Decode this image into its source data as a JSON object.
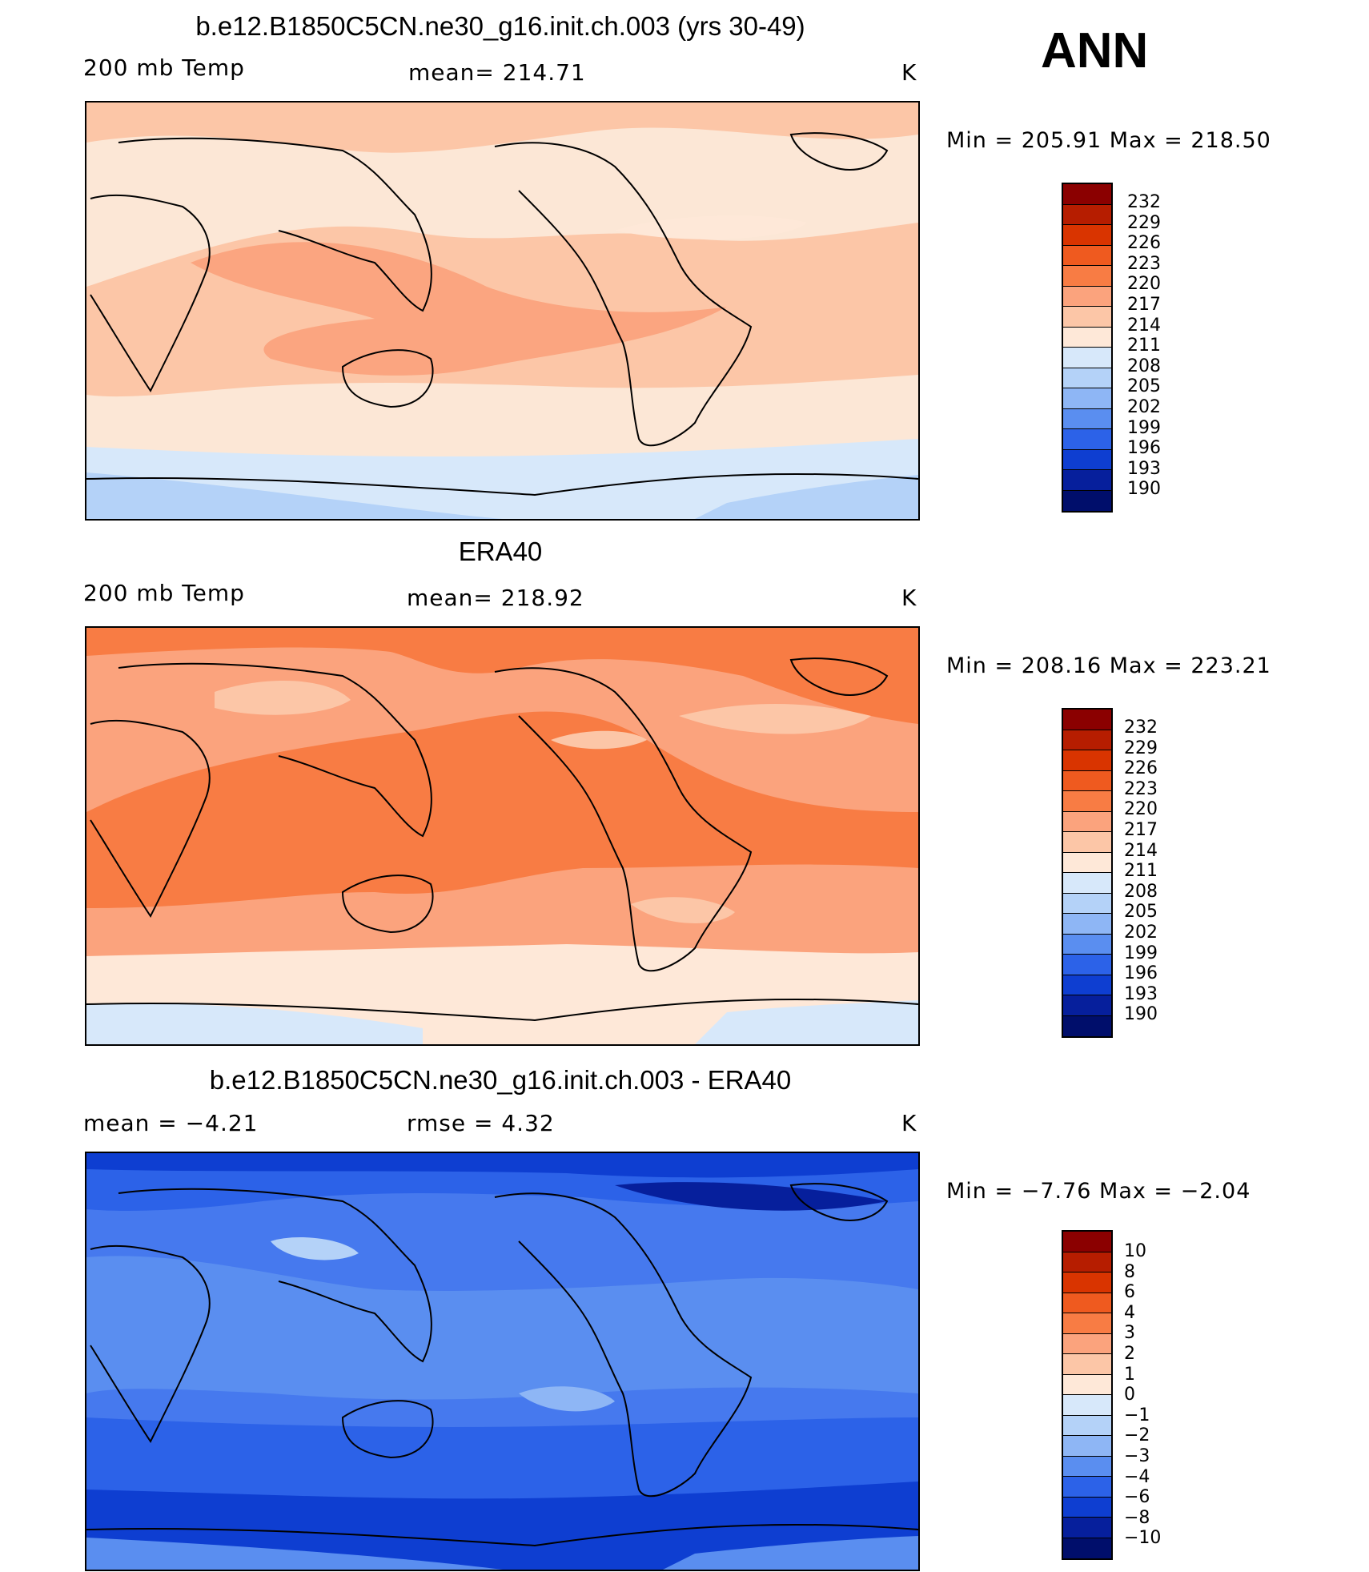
{
  "season": "ANN",
  "panels": [
    {
      "title": "b.e12.B1850C5CN.ne30_g16.init.ch.003 (yrs 30-49)",
      "left_label": "200 mb Temp",
      "center_label": "mean= 214.71",
      "units": "K",
      "minmax": "Min = 205.91 Max = 218.50",
      "base_color": "#fce7d6",
      "colorbar": {
        "labels": [
          "232",
          "229",
          "226",
          "223",
          "220",
          "217",
          "214",
          "211",
          "208",
          "205",
          "202",
          "199",
          "196",
          "193",
          "190"
        ],
        "colors": [
          "#8b0000",
          "#b61d00",
          "#d93400",
          "#ef5a1f",
          "#f87c44",
          "#fba37d",
          "#fcc6a7",
          "#fee8d8",
          "#d7e8fa",
          "#b4d2f8",
          "#8eb6f5",
          "#5a8ef0",
          "#2c62e8",
          "#0e3ed1",
          "#061f9c",
          "#000e6b"
        ]
      }
    },
    {
      "title": "ERA40",
      "left_label": "200 mb Temp",
      "center_label": "mean= 218.92",
      "units": "K",
      "minmax": "Min = 208.16 Max = 223.21",
      "base_color": "#fba37d",
      "colorbar": {
        "labels": [
          "232",
          "229",
          "226",
          "223",
          "220",
          "217",
          "214",
          "211",
          "208",
          "205",
          "202",
          "199",
          "196",
          "193",
          "190"
        ],
        "colors": [
          "#8b0000",
          "#b61d00",
          "#d93400",
          "#ef5a1f",
          "#f87c44",
          "#fba37d",
          "#fcc6a7",
          "#fee8d8",
          "#d7e8fa",
          "#b4d2f8",
          "#8eb6f5",
          "#5a8ef0",
          "#2c62e8",
          "#0e3ed1",
          "#061f9c",
          "#000e6b"
        ]
      }
    },
    {
      "title": "b.e12.B1850C5CN.ne30_g16.init.ch.003 - ERA40",
      "left_label": "mean =   −4.21",
      "center_label": "rmse =    4.32",
      "units": "K",
      "minmax": "Min =  −7.76 Max =  −2.04",
      "base_color": "#4679ee",
      "colorbar": {
        "labels": [
          "10",
          "8",
          "6",
          "4",
          "3",
          "2",
          "1",
          "0",
          "−1",
          "−2",
          "−3",
          "−4",
          "−6",
          "−8",
          "−10"
        ],
        "colors": [
          "#8b0000",
          "#b61d00",
          "#d93400",
          "#ef5a1f",
          "#f87c44",
          "#fba37d",
          "#fcc6a7",
          "#fee8d8",
          "#d7e8fa",
          "#b4d2f8",
          "#8eb6f5",
          "#5a8ef0",
          "#2c62e8",
          "#0e3ed1",
          "#061f9c",
          "#000e6b"
        ]
      }
    }
  ]
}
